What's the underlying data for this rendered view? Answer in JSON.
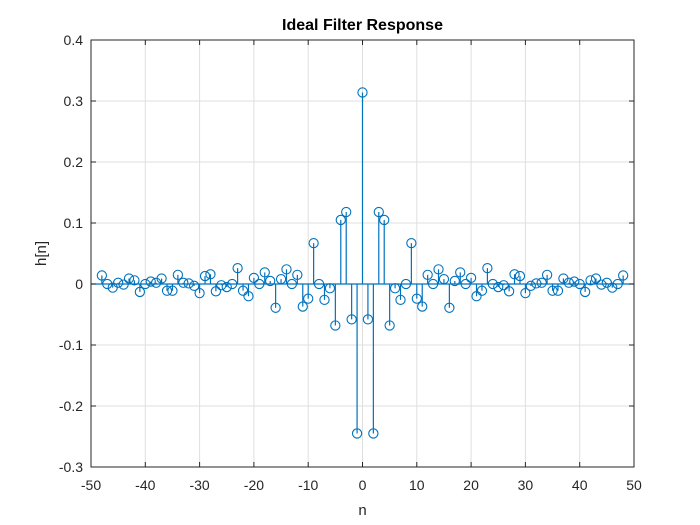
{
  "chart_data": {
    "type": "stem",
    "title": "Ideal Filter Response",
    "xlabel": "n",
    "ylabel": "h[n]",
    "xlim": [
      -50,
      50
    ],
    "ylim": [
      -0.3,
      0.4
    ],
    "xticks": [
      -50,
      -40,
      -30,
      -20,
      -10,
      0,
      10,
      20,
      30,
      40,
      50
    ],
    "yticks": [
      -0.3,
      -0.2,
      -0.1,
      0,
      0.1,
      0.2,
      0.3,
      0.4
    ],
    "xtick_labels": [
      "-50",
      "-40",
      "-30",
      "-20",
      "-10",
      "0",
      "10",
      "20",
      "30",
      "40",
      "50"
    ],
    "ytick_labels": [
      "-0.3",
      "-0.2",
      "-0.1",
      "0",
      "0.1",
      "0.2",
      "0.3",
      "0.4"
    ],
    "grid": true,
    "series": [
      {
        "color": "#0072bd",
        "x": [
          -48,
          -47,
          -46,
          -45,
          -44,
          -43,
          -42,
          -41,
          -40,
          -39,
          -38,
          -37,
          -36,
          -35,
          -34,
          -33,
          -32,
          -31,
          -30,
          -29,
          -28,
          -27,
          -26,
          -25,
          -24,
          -23,
          -22,
          -21,
          -20,
          -19,
          -18,
          -17,
          -16,
          -15,
          -14,
          -13,
          -12,
          -11,
          -10,
          -9,
          -8,
          -7,
          -6,
          -5,
          -4,
          -3,
          -2,
          -1,
          0,
          1,
          2,
          3,
          4,
          5,
          6,
          7,
          8,
          9,
          10,
          11,
          12,
          13,
          14,
          15,
          16,
          17,
          18,
          19,
          20,
          21,
          22,
          23,
          24,
          25,
          26,
          27,
          28,
          29,
          30,
          31,
          32,
          33,
          34,
          35,
          36,
          37,
          38,
          39,
          40,
          41,
          42,
          43,
          44,
          45,
          46,
          47,
          48
        ],
        "y": [
          0.014,
          0.0,
          -0.006,
          0.002,
          -0.001,
          0.009,
          0.006,
          -0.013,
          0.0,
          0.004,
          0.002,
          0.009,
          -0.011,
          -0.011,
          0.015,
          0.002,
          0.001,
          -0.003,
          -0.015,
          0.013,
          0.016,
          -0.012,
          -0.002,
          -0.005,
          0.0,
          0.026,
          -0.011,
          -0.02,
          0.01,
          0.0,
          0.019,
          0.005,
          -0.039,
          0.008,
          0.024,
          0.0,
          0.015,
          -0.037,
          -0.024,
          0.067,
          0.0,
          -0.026,
          -0.007,
          -0.068,
          0.105,
          0.118,
          -0.058,
          -0.245,
          0.314,
          -0.058,
          -0.245,
          0.118,
          0.105,
          -0.068,
          -0.007,
          -0.026,
          0.0,
          0.067,
          -0.024,
          -0.037,
          0.015,
          0.0,
          0.024,
          0.008,
          -0.039,
          0.005,
          0.019,
          0.0,
          0.01,
          -0.02,
          -0.011,
          0.026,
          0.0,
          -0.005,
          -0.002,
          -0.012,
          0.016,
          0.013,
          -0.015,
          -0.003,
          0.001,
          0.002,
          0.015,
          -0.011,
          -0.011,
          0.009,
          0.002,
          0.004,
          0.0,
          -0.013,
          0.006,
          0.009,
          -0.001,
          0.002,
          -0.006,
          0.0,
          0.014
        ]
      }
    ]
  },
  "colors": {
    "stem": "#0072bd",
    "baseline": "#0072bd",
    "grid": "#dfdfdf",
    "axes": "#262626"
  }
}
